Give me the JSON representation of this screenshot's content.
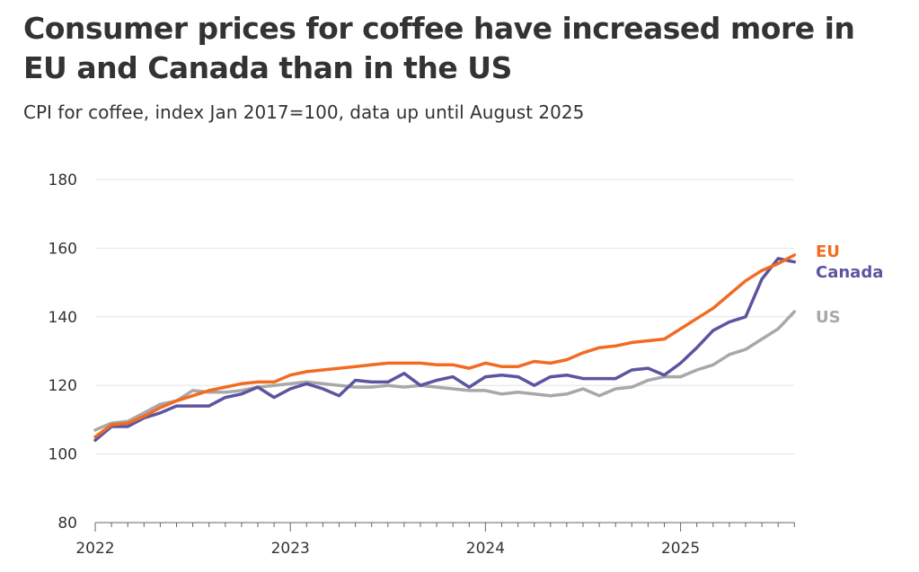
{
  "header": {
    "title": "Consumer prices for coffee have increased more in EU and Canada than in the US",
    "subtitle": "CPI for coffee, index Jan 2017=100, data up until August 2025"
  },
  "chart_data": {
    "type": "line",
    "title": "Consumer prices for coffee have increased more in EU and Canada than in the US",
    "subtitle": "CPI for coffee, index Jan 2017=100, data up until August 2025",
    "xlabel": "",
    "ylabel": "",
    "ylim": [
      80,
      180
    ],
    "yticks": [
      180,
      160,
      140,
      120,
      100,
      80
    ],
    "x_tick_labels": [
      "2022",
      "2023",
      "2024",
      "2025"
    ],
    "x_start": "2022-01",
    "months": 44,
    "grid": true,
    "legend_placement": "right (labels at line ends)",
    "series": [
      {
        "name": "US",
        "color": "#a8a8a8",
        "values": [
          107,
          109,
          109.5,
          112,
          114.5,
          115.5,
          118.5,
          118,
          118,
          118.5,
          119.5,
          120,
          120.5,
          121,
          120.5,
          120,
          119.5,
          119.5,
          120,
          119.5,
          120,
          119.5,
          119,
          118.5,
          118.5,
          117.5,
          118,
          117.5,
          117,
          117.5,
          119,
          117,
          119,
          119.5,
          121.5,
          122.5,
          122.5,
          124.5,
          126,
          129,
          130.5,
          133.5,
          136.5,
          141.5
        ]
      },
      {
        "name": "Canada",
        "color": "#5b55a0",
        "values": [
          104,
          108,
          108,
          110.5,
          112,
          114,
          114,
          114,
          116.5,
          117.5,
          119.5,
          116.5,
          119,
          120.5,
          119,
          117,
          121.5,
          121,
          121,
          123.5,
          120,
          121.5,
          122.5,
          119.5,
          122.5,
          123,
          122.5,
          120,
          122.5,
          123,
          122,
          122,
          122,
          124.5,
          125,
          123,
          126.5,
          131,
          136,
          138.5,
          140,
          151,
          157,
          156
        ]
      },
      {
        "name": "EU",
        "color": "#f26b21",
        "values": [
          105,
          108.5,
          109,
          111,
          113.5,
          115.5,
          117,
          118.5,
          119.5,
          120.5,
          121,
          121,
          123,
          124,
          124.5,
          125,
          125.5,
          126,
          126.5,
          126.5,
          126.5,
          126,
          126,
          125,
          126.5,
          125.5,
          125.5,
          127,
          126.5,
          127.5,
          129.5,
          131,
          131.5,
          132.5,
          133,
          133.5,
          136.5,
          139.5,
          142.5,
          146.5,
          150.5,
          153.5,
          155.5,
          158
        ]
      }
    ]
  }
}
